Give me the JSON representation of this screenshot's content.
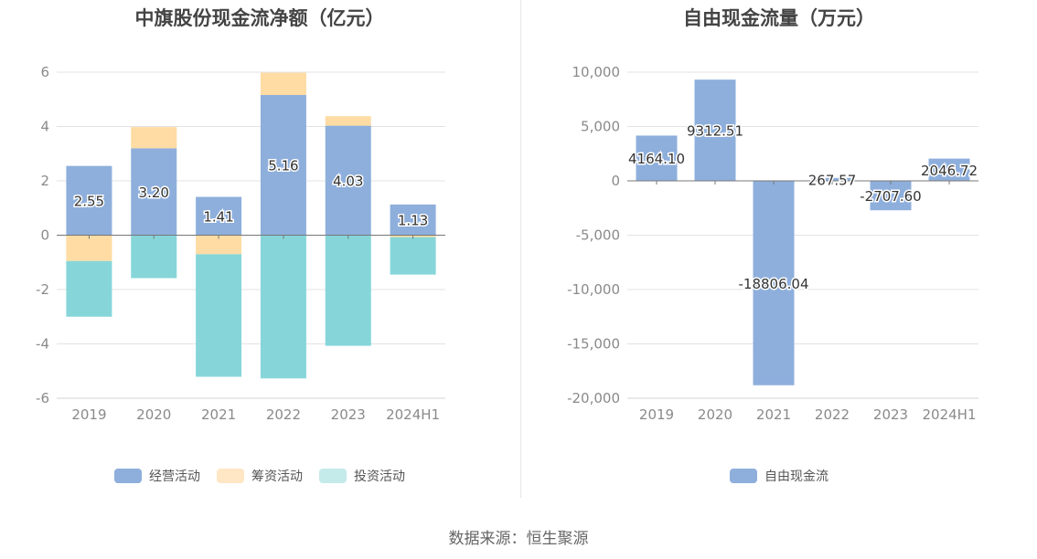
{
  "chart_data": [
    {
      "type": "bar",
      "stacked": true,
      "title": "中旗股份现金流净额（亿元）",
      "categories": [
        "2019",
        "2020",
        "2021",
        "2022",
        "2023",
        "2024H1"
      ],
      "series": [
        {
          "name": "经营活动",
          "color": "#8eafdc",
          "values": [
            2.55,
            3.2,
            1.41,
            5.16,
            4.03,
            1.13
          ]
        },
        {
          "name": "筹资活动",
          "color": "#ffdca3",
          "values": [
            -0.95,
            0.78,
            -0.7,
            0.82,
            0.35,
            -0.07
          ]
        },
        {
          "name": "投资活动",
          "color": "#86d6d9",
          "values": [
            -2.05,
            -1.58,
            -4.51,
            -5.27,
            -4.07,
            -1.38
          ]
        }
      ],
      "data_labels": [
        "2.55",
        "3.20",
        "1.41",
        "5.16",
        "4.03",
        "1.13"
      ],
      "yticks": [
        "6",
        "4",
        "2",
        "0",
        "-2",
        "-4",
        "-6"
      ],
      "ylim": [
        -6,
        6
      ],
      "legend_swatch_colors": [
        "#8eafdc",
        "#ffe6c4",
        "#c4eaea"
      ]
    },
    {
      "type": "bar",
      "title": "自由现金流量（万元）",
      "categories": [
        "2019",
        "2020",
        "2021",
        "2022",
        "2023",
        "2024H1"
      ],
      "series": [
        {
          "name": "自由现金流",
          "color": "#8eafdc",
          "values": [
            4164.1,
            9312.51,
            -18806.04,
            267.57,
            -2707.6,
            2046.72
          ]
        }
      ],
      "data_labels": [
        "4164.10",
        "9312.51",
        "-18806.04",
        "267.57",
        "-2707.60",
        "2046.72"
      ],
      "yticks": [
        "10,000",
        "5,000",
        "0",
        "-5,000",
        "-10,000",
        "-15,000",
        "-20,000"
      ],
      "ylim": [
        -20000,
        10000
      ]
    }
  ],
  "source": "数据来源：恒生聚源"
}
